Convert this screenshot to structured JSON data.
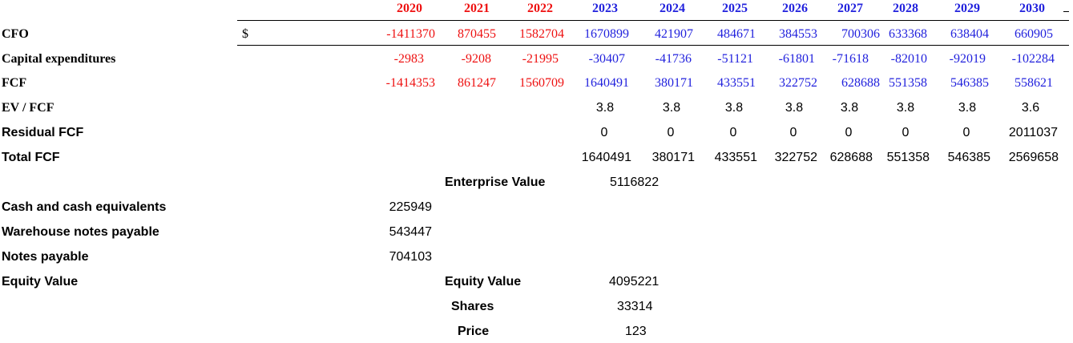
{
  "header": {
    "years_historical": [
      "2020",
      "2021",
      "2022"
    ],
    "years_projected": [
      "2023",
      "2024",
      "2025",
      "2026",
      "2027",
      "2028",
      "2029",
      "2030"
    ]
  },
  "rows": {
    "cfo": {
      "label": "CFO",
      "currency": "$",
      "historical": [
        "-1411370",
        "870455",
        "1582704"
      ],
      "projected": [
        "1670899",
        "421907",
        "484671",
        "384553",
        "700306",
        "633368",
        "638404",
        "660905"
      ]
    },
    "capex": {
      "label": "Capital expenditures",
      "historical": [
        "-2983",
        "-9208",
        "-21995"
      ],
      "projected": [
        "-30407",
        "-41736",
        "-51121",
        "-61801",
        "-71618",
        "-82010",
        "-92019",
        "-102284"
      ]
    },
    "fcf": {
      "label": "FCF",
      "historical": [
        "-1414353",
        "861247",
        "1560709"
      ],
      "projected": [
        "1640491",
        "380171",
        "433551",
        "322752",
        "628688",
        "551358",
        "546385",
        "558621"
      ]
    },
    "ev_fcf": {
      "label": "EV / FCF",
      "projected": [
        "3.8",
        "3.8",
        "3.8",
        "3.8",
        "3.8",
        "3.8",
        "3.8",
        "3.6"
      ]
    },
    "residual_fcf": {
      "label": "Residual FCF",
      "projected": [
        "0",
        "0",
        "0",
        "0",
        "0",
        "0",
        "0",
        "2011037"
      ]
    },
    "total_fcf": {
      "label": "Total FCF",
      "projected": [
        "1640491",
        "380171",
        "433551",
        "322752",
        "628688",
        "551358",
        "546385",
        "2569658"
      ]
    }
  },
  "enterprise_value": {
    "label": "Enterprise Value",
    "value": "5116822"
  },
  "balance": [
    {
      "label": "Cash and cash equivalents",
      "value": "225949"
    },
    {
      "label": "Warehouse notes payable",
      "value": "543447"
    },
    {
      "label": "Notes payable",
      "value": "704103"
    }
  ],
  "equity_value_left": {
    "label": "Equity Value"
  },
  "summary": {
    "equity_value": {
      "label": "Equity Value",
      "value": "4095221"
    },
    "shares": {
      "label": "Shares",
      "value": "33314"
    },
    "price": {
      "label": "Price",
      "value": "123"
    }
  },
  "colors": {
    "historical": "#ee1111",
    "projected": "#2222dd",
    "text": "#000000"
  }
}
